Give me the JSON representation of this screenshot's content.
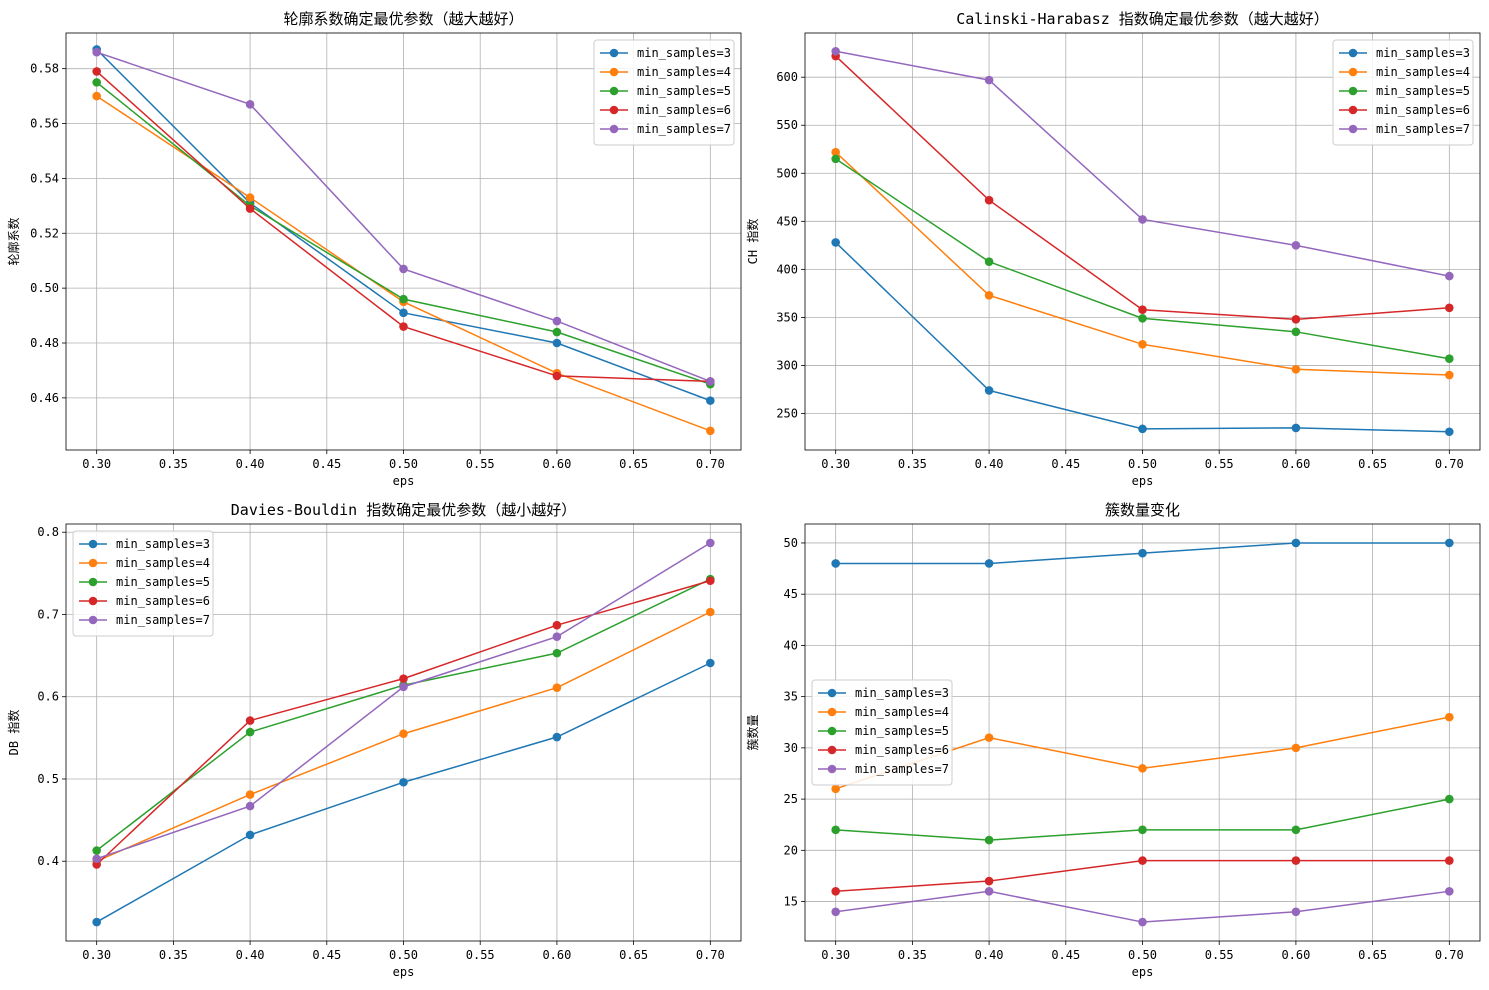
{
  "figure": {
    "background": "#ffffff"
  },
  "colors": [
    "#1f77b4",
    "#ff7f0e",
    "#2ca02c",
    "#d62728",
    "#9467bd"
  ],
  "chart_data": [
    {
      "type": "line",
      "title": "轮廓系数确定最优参数（越大越好）",
      "xlabel": "eps",
      "ylabel": "轮廓系数",
      "x": [
        0.3,
        0.4,
        0.5,
        0.6,
        0.7
      ],
      "xlim": [
        0.28,
        0.72
      ],
      "ylim": [
        0.441,
        0.593
      ],
      "xticks": [
        0.3,
        0.35,
        0.4,
        0.45,
        0.5,
        0.55,
        0.6,
        0.65,
        0.7
      ],
      "xtick_labels": [
        "0.30",
        "0.35",
        "0.40",
        "0.45",
        "0.50",
        "0.55",
        "0.60",
        "0.65",
        "0.70"
      ],
      "yticks": [
        0.46,
        0.48,
        0.5,
        0.52,
        0.54,
        0.56,
        0.58
      ],
      "ytick_labels": [
        "0.46",
        "0.48",
        "0.50",
        "0.52",
        "0.54",
        "0.56",
        "0.58"
      ],
      "grid": true,
      "legend": "top-right",
      "series": [
        {
          "name": "min_samples=3",
          "values": [
            0.587,
            0.531,
            0.491,
            0.48,
            0.459
          ]
        },
        {
          "name": "min_samples=4",
          "values": [
            0.57,
            0.533,
            0.495,
            0.469,
            0.448
          ]
        },
        {
          "name": "min_samples=5",
          "values": [
            0.575,
            0.53,
            0.496,
            0.484,
            0.465
          ]
        },
        {
          "name": "min_samples=6",
          "values": [
            0.579,
            0.529,
            0.486,
            0.468,
            0.466
          ]
        },
        {
          "name": "min_samples=7",
          "values": [
            0.586,
            0.567,
            0.507,
            0.488,
            0.466
          ]
        }
      ]
    },
    {
      "type": "line",
      "title": "Calinski-Harabasz 指数确定最优参数（越大越好）",
      "xlabel": "eps",
      "ylabel": "CH 指数",
      "x": [
        0.3,
        0.4,
        0.5,
        0.6,
        0.7
      ],
      "xlim": [
        0.28,
        0.72
      ],
      "ylim": [
        212,
        646
      ],
      "xticks": [
        0.3,
        0.35,
        0.4,
        0.45,
        0.5,
        0.55,
        0.6,
        0.65,
        0.7
      ],
      "xtick_labels": [
        "0.30",
        "0.35",
        "0.40",
        "0.45",
        "0.50",
        "0.55",
        "0.60",
        "0.65",
        "0.70"
      ],
      "yticks": [
        250,
        300,
        350,
        400,
        450,
        500,
        550,
        600
      ],
      "ytick_labels": [
        "250",
        "300",
        "350",
        "400",
        "450",
        "500",
        "550",
        "600"
      ],
      "grid": true,
      "legend": "top-right",
      "series": [
        {
          "name": "min_samples=3",
          "values": [
            428,
            274,
            234,
            235,
            231
          ]
        },
        {
          "name": "min_samples=4",
          "values": [
            522,
            373,
            322,
            296,
            290
          ]
        },
        {
          "name": "min_samples=5",
          "values": [
            515,
            408,
            349,
            335,
            307
          ]
        },
        {
          "name": "min_samples=6",
          "values": [
            622,
            472,
            358,
            348,
            360
          ]
        },
        {
          "name": "min_samples=7",
          "values": [
            627,
            597,
            452,
            425,
            393
          ]
        }
      ]
    },
    {
      "type": "line",
      "title": "Davies-Bouldin 指数确定最优参数（越小越好）",
      "xlabel": "eps",
      "ylabel": "DB 指数",
      "x": [
        0.3,
        0.4,
        0.5,
        0.6,
        0.7
      ],
      "xlim": [
        0.28,
        0.72
      ],
      "ylim": [
        0.303,
        0.81
      ],
      "xticks": [
        0.3,
        0.35,
        0.4,
        0.45,
        0.5,
        0.55,
        0.6,
        0.65,
        0.7
      ],
      "xtick_labels": [
        "0.30",
        "0.35",
        "0.40",
        "0.45",
        "0.50",
        "0.55",
        "0.60",
        "0.65",
        "0.70"
      ],
      "yticks": [
        0.4,
        0.5,
        0.6,
        0.7,
        0.8
      ],
      "ytick_labels": [
        "0.4",
        "0.5",
        "0.6",
        "0.7",
        "0.8"
      ],
      "grid": true,
      "legend": "top-left",
      "series": [
        {
          "name": "min_samples=3",
          "values": [
            0.326,
            0.432,
            0.496,
            0.551,
            0.641
          ]
        },
        {
          "name": "min_samples=4",
          "values": [
            0.4,
            0.481,
            0.555,
            0.611,
            0.703
          ]
        },
        {
          "name": "min_samples=5",
          "values": [
            0.413,
            0.557,
            0.614,
            0.653,
            0.743
          ]
        },
        {
          "name": "min_samples=6",
          "values": [
            0.396,
            0.571,
            0.622,
            0.687,
            0.741
          ]
        },
        {
          "name": "min_samples=7",
          "values": [
            0.403,
            0.467,
            0.612,
            0.673,
            0.787
          ]
        }
      ]
    },
    {
      "type": "line",
      "title": "簇数量变化",
      "xlabel": "eps",
      "ylabel": "簇数量",
      "x": [
        0.3,
        0.4,
        0.5,
        0.6,
        0.7
      ],
      "xlim": [
        0.28,
        0.72
      ],
      "ylim": [
        11.15,
        51.85
      ],
      "xticks": [
        0.3,
        0.35,
        0.4,
        0.45,
        0.5,
        0.55,
        0.6,
        0.65,
        0.7
      ],
      "xtick_labels": [
        "0.30",
        "0.35",
        "0.40",
        "0.45",
        "0.50",
        "0.55",
        "0.60",
        "0.65",
        "0.70"
      ],
      "yticks": [
        15,
        20,
        25,
        30,
        35,
        40,
        45,
        50
      ],
      "ytick_labels": [
        "15",
        "20",
        "25",
        "30",
        "35",
        "40",
        "45",
        "50"
      ],
      "grid": true,
      "legend": "center-left",
      "series": [
        {
          "name": "min_samples=3",
          "values": [
            48,
            48,
            49,
            50,
            50
          ]
        },
        {
          "name": "min_samples=4",
          "values": [
            26,
            31,
            28,
            30,
            33
          ]
        },
        {
          "name": "min_samples=5",
          "values": [
            22,
            21,
            22,
            22,
            25
          ]
        },
        {
          "name": "min_samples=6",
          "values": [
            16,
            17,
            19,
            19,
            19
          ]
        },
        {
          "name": "min_samples=7",
          "values": [
            14,
            16,
            13,
            14,
            16
          ]
        }
      ]
    }
  ]
}
